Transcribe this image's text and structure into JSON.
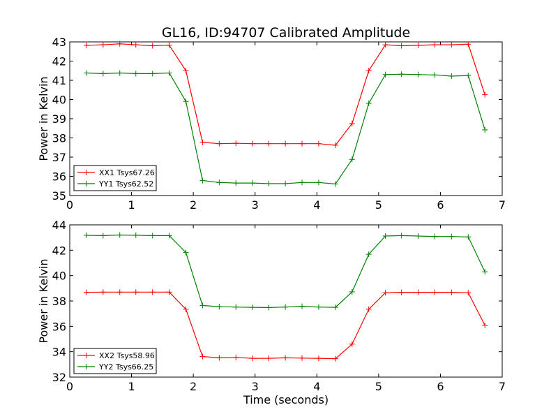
{
  "chart_data": [
    {
      "type": "line",
      "title": "GL16, ID:94707 Calibrated Amplitude",
      "xlabel": "",
      "ylabel": "Power in Kelvin",
      "xlim": [
        0,
        7
      ],
      "ylim": [
        35,
        43
      ],
      "xticks": [
        "0",
        "1",
        "2",
        "3",
        "4",
        "5",
        "6",
        "7"
      ],
      "yticks": [
        "35",
        "36",
        "37",
        "38",
        "39",
        "40",
        "41",
        "42",
        "43"
      ],
      "legend_position": "lower-left",
      "grid": false,
      "x": [
        0.27,
        0.54,
        0.81,
        1.07,
        1.34,
        1.61,
        1.88,
        2.15,
        2.42,
        2.69,
        2.96,
        3.22,
        3.49,
        3.76,
        4.03,
        4.3,
        4.57,
        4.84,
        5.11,
        5.37,
        5.64,
        5.91,
        6.18,
        6.45,
        6.72
      ],
      "series": [
        {
          "name": "XX1 Tsys67.26",
          "color": "#ff0000",
          "values": [
            42.82,
            42.85,
            42.9,
            42.85,
            42.8,
            42.83,
            41.5,
            37.77,
            37.7,
            37.72,
            37.7,
            37.7,
            37.7,
            37.7,
            37.7,
            37.62,
            38.75,
            41.5,
            42.85,
            42.8,
            42.82,
            42.85,
            42.85,
            42.88,
            40.25
          ]
        },
        {
          "name": "YY1 Tsys62.52",
          "color": "#008000",
          "values": [
            41.38,
            41.35,
            41.38,
            41.35,
            41.35,
            41.38,
            39.9,
            35.78,
            35.68,
            35.65,
            35.65,
            35.62,
            35.62,
            35.68,
            35.68,
            35.6,
            36.88,
            39.8,
            41.3,
            41.32,
            41.3,
            41.28,
            41.22,
            41.25,
            38.42
          ]
        }
      ]
    },
    {
      "type": "line",
      "title": "",
      "xlabel": "Time (seconds)",
      "ylabel": "Power in Kelvin",
      "xlim": [
        0,
        7
      ],
      "ylim": [
        32,
        44
      ],
      "xticks": [
        "0",
        "1",
        "2",
        "3",
        "4",
        "5",
        "6",
        "7"
      ],
      "yticks": [
        "32",
        "34",
        "36",
        "38",
        "40",
        "42",
        "44"
      ],
      "legend_position": "lower-left",
      "grid": false,
      "x": [
        0.27,
        0.54,
        0.81,
        1.07,
        1.34,
        1.61,
        1.88,
        2.15,
        2.42,
        2.69,
        2.96,
        3.22,
        3.49,
        3.76,
        4.03,
        4.3,
        4.57,
        4.84,
        5.11,
        5.37,
        5.64,
        5.91,
        6.18,
        6.45,
        6.72
      ],
      "series": [
        {
          "name": "XX2 Tsys58.96",
          "color": "#ff0000",
          "values": [
            38.68,
            38.7,
            38.7,
            38.7,
            38.7,
            38.7,
            37.35,
            33.62,
            33.52,
            33.55,
            33.48,
            33.48,
            33.52,
            33.5,
            33.48,
            33.45,
            34.6,
            37.35,
            38.65,
            38.68,
            38.68,
            38.68,
            38.68,
            38.65,
            36.08
          ]
        },
        {
          "name": "YY2 Tsys66.25",
          "color": "#008000",
          "values": [
            43.18,
            43.15,
            43.2,
            43.18,
            43.15,
            43.15,
            41.82,
            37.65,
            37.55,
            37.52,
            37.5,
            37.48,
            37.52,
            37.58,
            37.52,
            37.5,
            38.72,
            41.68,
            43.12,
            43.15,
            43.12,
            43.08,
            43.08,
            43.05,
            40.3
          ]
        }
      ]
    }
  ]
}
